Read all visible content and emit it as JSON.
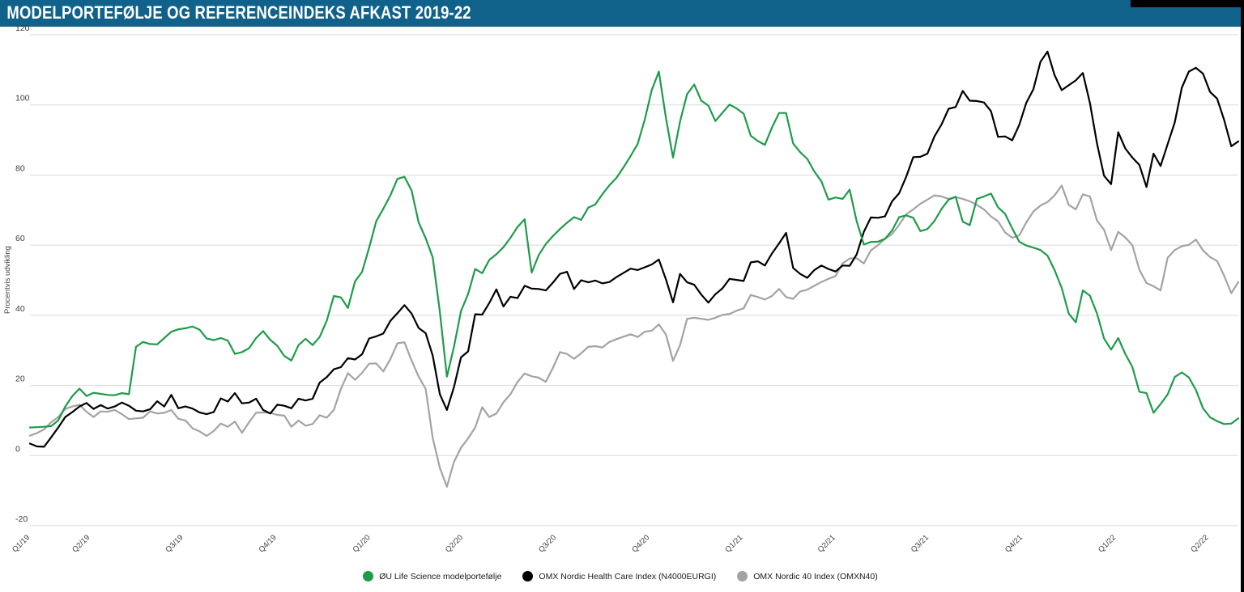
{
  "header": {
    "title": "MODELPORTEFØLJE OG REFERENCEINDEKS AFKAST 2019-22"
  },
  "chart_data": {
    "type": "line",
    "title": "MODELPORTEFØLJE OG REFERENCEINDEKS AFKAST 2019-22",
    "xlabel": "",
    "ylabel": "Procentvis udvikling",
    "ylim": [
      -20,
      120
    ],
    "yticks": [
      120,
      100,
      80,
      60,
      40,
      20,
      0,
      -20
    ],
    "grid": "horizontal-only",
    "legend_position": "bottom-center",
    "x_unit": "weekly points, Feb 2019 - May 2022",
    "xticks": [
      {
        "label": "Q1/19",
        "pos": 0
      },
      {
        "label": "Q2/19",
        "pos": 8.5
      },
      {
        "label": "Q3/19",
        "pos": 21.7
      },
      {
        "label": "Q4/19",
        "pos": 34.9
      },
      {
        "label": "Q1/20",
        "pos": 48.2
      },
      {
        "label": "Q2/20",
        "pos": 61.3
      },
      {
        "label": "Q3/20",
        "pos": 74.5
      },
      {
        "label": "Q4/20",
        "pos": 87.7
      },
      {
        "label": "Q1/21",
        "pos": 100.9
      },
      {
        "label": "Q2/21",
        "pos": 114.0
      },
      {
        "label": "Q3/21",
        "pos": 127.2
      },
      {
        "label": "Q4/21",
        "pos": 140.5
      },
      {
        "label": "Q1/22",
        "pos": 153.7
      },
      {
        "label": "Q2/22",
        "pos": 166.8
      }
    ],
    "series": [
      {
        "name": "ØU Life Science modelportefølje",
        "color": "#1e9b4a",
        "values": [
          8.0,
          8.1,
          8.2,
          8.4,
          10.0,
          14.0,
          17.0,
          19.1,
          17.0,
          17.9,
          17.6,
          17.3,
          17.2,
          17.8,
          17.5,
          31.0,
          32.4,
          31.8,
          31.7,
          33.5,
          35.3,
          36.0,
          36.3,
          36.8,
          35.9,
          33.4,
          32.9,
          33.5,
          32.8,
          29.0,
          29.5,
          30.6,
          33.5,
          35.5,
          33.0,
          31.3,
          28.4,
          27.1,
          31.5,
          33.3,
          31.5,
          33.8,
          38.5,
          45.5,
          45.1,
          42.1,
          49.7,
          52.4,
          59.3,
          66.8,
          70.4,
          74.2,
          78.9,
          79.5,
          75.6,
          66.5,
          62.0,
          56.5,
          41.0,
          22.5,
          31.0,
          41.2,
          46.1,
          53.2,
          52.0,
          55.8,
          57.4,
          59.4,
          62.1,
          65.2,
          67.4,
          52.2,
          57.2,
          60.3,
          62.6,
          64.6,
          66.4,
          68.0,
          67.2,
          70.7,
          71.6,
          74.5,
          77.1,
          79.2,
          82.2,
          85.4,
          88.9,
          95.8,
          104.3,
          109.5,
          96.2,
          85.0,
          95.3,
          103.1,
          105.8,
          101.2,
          99.8,
          95.4,
          97.8,
          100.1,
          99.0,
          97.5,
          91.2,
          89.7,
          88.6,
          93.5,
          97.7,
          97.7,
          89.0,
          86.5,
          84.6,
          81.0,
          78.2,
          73.0,
          73.6,
          73.2,
          75.8,
          66.8,
          60.2,
          60.9,
          61.0,
          61.8,
          64.2,
          68.0,
          68.5,
          67.8,
          64.0,
          64.6,
          66.9,
          70.3,
          73.0,
          73.8,
          66.7,
          65.7,
          73.2,
          73.9,
          74.7,
          70.8,
          68.9,
          64.8,
          61.0,
          59.9,
          59.3,
          58.6,
          57.0,
          52.9,
          47.8,
          40.5,
          38.0,
          47.1,
          45.6,
          40.5,
          33.4,
          30.2,
          33.5,
          29.0,
          25.3,
          18.2,
          17.8,
          12.2,
          14.7,
          17.4,
          22.4,
          23.7,
          22.3,
          18.7,
          13.5,
          10.9,
          9.8,
          9.0,
          9.1,
          10.6
        ]
      },
      {
        "name": "OMX Nordic Health Care Index (N4000EURGI)",
        "color": "#000000",
        "values": [
          3.4,
          2.6,
          2.5,
          5.2,
          8.0,
          11.0,
          12.4,
          14.0,
          15.0,
          13.3,
          14.4,
          13.4,
          14.0,
          15.1,
          14.2,
          12.8,
          12.6,
          13.2,
          15.5,
          14.0,
          17.3,
          13.5,
          14.0,
          13.4,
          12.3,
          11.8,
          12.4,
          16.3,
          15.4,
          17.8,
          14.9,
          15.1,
          16.2,
          13.0,
          12.0,
          14.5,
          14.2,
          13.5,
          16.2,
          15.7,
          16.2,
          20.8,
          22.4,
          24.6,
          25.2,
          27.8,
          27.4,
          28.9,
          33.4,
          34.0,
          34.8,
          38.4,
          40.6,
          42.9,
          40.5,
          36.4,
          34.9,
          28.5,
          17.5,
          13.0,
          19.5,
          28.0,
          29.7,
          40.3,
          40.2,
          43.5,
          47.4,
          42.5,
          45.3,
          44.9,
          48.4,
          47.6,
          47.5,
          47.1,
          49.3,
          51.8,
          52.4,
          47.5,
          50.0,
          49.4,
          49.9,
          49.1,
          49.5,
          50.9,
          52.1,
          53.3,
          52.9,
          53.7,
          54.5,
          55.9,
          50.2,
          43.7,
          51.8,
          49.4,
          48.7,
          45.9,
          43.6,
          46.0,
          47.7,
          50.4,
          50.1,
          49.8,
          55.1,
          55.4,
          54.2,
          57.6,
          60.5,
          63.5,
          53.5,
          51.8,
          50.7,
          52.9,
          54.2,
          53.2,
          52.5,
          54.2,
          54.1,
          57.4,
          63.8,
          67.9,
          67.8,
          68.2,
          72.5,
          74.8,
          79.5,
          85.1,
          85.2,
          86.1,
          91.0,
          94.4,
          98.9,
          99.4,
          104.0,
          101.2,
          101.1,
          100.7,
          98.2,
          90.9,
          91.0,
          89.9,
          94.3,
          100.6,
          104.5,
          112.3,
          115.2,
          108.5,
          104.2,
          105.6,
          107.0,
          109.1,
          100.5,
          89.0,
          79.8,
          77.4,
          92.2,
          87.6,
          85.0,
          82.9,
          76.6,
          86.1,
          82.6,
          88.8,
          95.0,
          104.9,
          109.5,
          110.6,
          108.9,
          103.7,
          101.8,
          95.7,
          88.2,
          89.6
        ]
      },
      {
        "name": "OMX Nordic 40 Index (OMXN40)",
        "color": "#a3a3a3",
        "values": [
          5.7,
          6.4,
          7.5,
          9.5,
          11.0,
          13.3,
          14.0,
          14.5,
          12.5,
          11.0,
          12.6,
          12.5,
          13.0,
          11.8,
          10.4,
          10.6,
          10.8,
          12.6,
          12.0,
          12.2,
          13.0,
          10.5,
          10.0,
          7.8,
          6.9,
          5.6,
          7.0,
          9.1,
          8.2,
          9.7,
          6.5,
          9.5,
          12.2,
          12.3,
          12.2,
          11.6,
          11.4,
          8.2,
          10.0,
          8.5,
          9.0,
          11.5,
          10.8,
          13.0,
          19.0,
          23.5,
          21.6,
          23.6,
          26.2,
          26.3,
          24.0,
          27.5,
          32.0,
          32.3,
          27.1,
          22.5,
          19.0,
          5.0,
          -3.5,
          -8.9,
          -1.8,
          2.2,
          4.9,
          8.0,
          13.8,
          11.0,
          12.0,
          15.2,
          17.5,
          21.0,
          23.4,
          22.6,
          22.2,
          21.0,
          25.0,
          29.5,
          29.0,
          27.6,
          29.2,
          31.0,
          31.2,
          30.8,
          32.4,
          33.2,
          33.9,
          34.6,
          33.8,
          35.3,
          35.6,
          37.4,
          34.5,
          27.0,
          31.5,
          39.0,
          39.3,
          39.0,
          38.7,
          39.3,
          40.1,
          40.4,
          41.3,
          42.0,
          45.8,
          45.2,
          44.5,
          45.5,
          47.5,
          45.2,
          44.7,
          46.8,
          47.3,
          48.4,
          49.5,
          50.4,
          51.2,
          54.8,
          56.2,
          56.3,
          54.8,
          58.5,
          60.0,
          61.8,
          63.2,
          65.8,
          68.8,
          70.2,
          71.8,
          73.0,
          74.2,
          73.9,
          73.2,
          73.7,
          73.2,
          72.5,
          71.5,
          70.2,
          68.2,
          66.8,
          63.6,
          62.1,
          62.8,
          66.5,
          69.6,
          71.3,
          72.3,
          74.2,
          77.0,
          71.5,
          70.2,
          74.5,
          73.9,
          67.0,
          64.4,
          58.6,
          63.8,
          62.2,
          60.0,
          53.0,
          49.2,
          48.3,
          47.1,
          56.4,
          58.6,
          59.7,
          60.1,
          61.6,
          58.5,
          56.6,
          55.5,
          51.3,
          46.3,
          49.5
        ]
      }
    ]
  }
}
